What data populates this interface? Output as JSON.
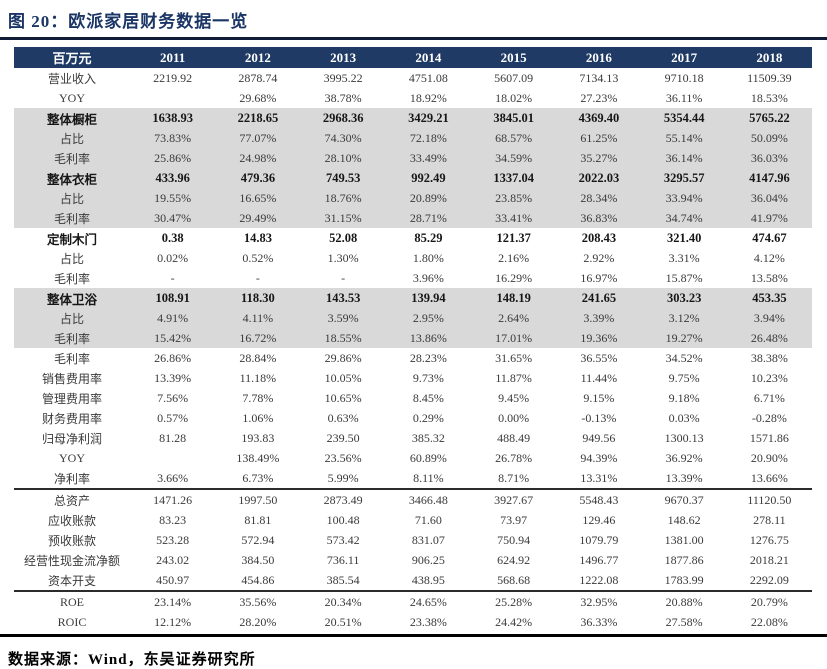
{
  "title": "图 20：欧派家居财务数据一览",
  "footer": "数据来源：Wind，东吴证券研究所",
  "colors": {
    "header_bg": "#1f3a64",
    "title_text": "#1a3566",
    "shaded_row_bg": "#d9d9d9",
    "rule": "#000000"
  },
  "table": {
    "unit_label": "百万元",
    "years": [
      "2011",
      "2012",
      "2013",
      "2014",
      "2015",
      "2016",
      "2017",
      "2018"
    ],
    "rows": [
      {
        "label": "营业收入",
        "bold": false,
        "shaded": false,
        "sep": false,
        "values": [
          "2219.92",
          "2878.74",
          "3995.22",
          "4751.08",
          "5607.09",
          "7134.13",
          "9710.18",
          "11509.39"
        ]
      },
      {
        "label": "YOY",
        "bold": false,
        "shaded": false,
        "sep": false,
        "values": [
          "",
          "29.68%",
          "38.78%",
          "18.92%",
          "18.02%",
          "27.23%",
          "36.11%",
          "18.53%"
        ]
      },
      {
        "label": "整体橱柜",
        "bold": true,
        "shaded": true,
        "sep": false,
        "values": [
          "1638.93",
          "2218.65",
          "2968.36",
          "3429.21",
          "3845.01",
          "4369.40",
          "5354.44",
          "5765.22"
        ]
      },
      {
        "label": "占比",
        "bold": false,
        "shaded": true,
        "sep": false,
        "values": [
          "73.83%",
          "77.07%",
          "74.30%",
          "72.18%",
          "68.57%",
          "61.25%",
          "55.14%",
          "50.09%"
        ]
      },
      {
        "label": "毛利率",
        "bold": false,
        "shaded": true,
        "sep": false,
        "values": [
          "25.86%",
          "24.98%",
          "28.10%",
          "33.49%",
          "34.59%",
          "35.27%",
          "36.14%",
          "36.03%"
        ]
      },
      {
        "label": "整体衣柜",
        "bold": true,
        "shaded": true,
        "sep": false,
        "values": [
          "433.96",
          "479.36",
          "749.53",
          "992.49",
          "1337.04",
          "2022.03",
          "3295.57",
          "4147.96"
        ]
      },
      {
        "label": "占比",
        "bold": false,
        "shaded": true,
        "sep": false,
        "values": [
          "19.55%",
          "16.65%",
          "18.76%",
          "20.89%",
          "23.85%",
          "28.34%",
          "33.94%",
          "36.04%"
        ]
      },
      {
        "label": "毛利率",
        "bold": false,
        "shaded": true,
        "sep": false,
        "values": [
          "30.47%",
          "29.49%",
          "31.15%",
          "28.71%",
          "33.41%",
          "36.83%",
          "34.74%",
          "41.97%"
        ]
      },
      {
        "label": "定制木门",
        "bold": true,
        "shaded": false,
        "sep": false,
        "values": [
          "0.38",
          "14.83",
          "52.08",
          "85.29",
          "121.37",
          "208.43",
          "321.40",
          "474.67"
        ]
      },
      {
        "label": "占比",
        "bold": false,
        "shaded": false,
        "sep": false,
        "values": [
          "0.02%",
          "0.52%",
          "1.30%",
          "1.80%",
          "2.16%",
          "2.92%",
          "3.31%",
          "4.12%"
        ]
      },
      {
        "label": "毛利率",
        "bold": false,
        "shaded": false,
        "sep": false,
        "values": [
          "-",
          "-",
          "-",
          "3.96%",
          "16.29%",
          "16.97%",
          "15.87%",
          "13.58%"
        ]
      },
      {
        "label": "整体卫浴",
        "bold": true,
        "shaded": true,
        "sep": false,
        "values": [
          "108.91",
          "118.30",
          "143.53",
          "139.94",
          "148.19",
          "241.65",
          "303.23",
          "453.35"
        ]
      },
      {
        "label": "占比",
        "bold": false,
        "shaded": true,
        "sep": false,
        "values": [
          "4.91%",
          "4.11%",
          "3.59%",
          "2.95%",
          "2.64%",
          "3.39%",
          "3.12%",
          "3.94%"
        ]
      },
      {
        "label": "毛利率",
        "bold": false,
        "shaded": true,
        "sep": false,
        "values": [
          "15.42%",
          "16.72%",
          "18.55%",
          "13.86%",
          "17.01%",
          "19.36%",
          "19.27%",
          "26.48%"
        ]
      },
      {
        "label": "毛利率",
        "bold": false,
        "shaded": false,
        "sep": false,
        "values": [
          "26.86%",
          "28.84%",
          "29.86%",
          "28.23%",
          "31.65%",
          "36.55%",
          "34.52%",
          "38.38%"
        ]
      },
      {
        "label": "销售费用率",
        "bold": false,
        "shaded": false,
        "sep": false,
        "values": [
          "13.39%",
          "11.18%",
          "10.05%",
          "9.73%",
          "11.87%",
          "11.44%",
          "9.75%",
          "10.23%"
        ]
      },
      {
        "label": "管理费用率",
        "bold": false,
        "shaded": false,
        "sep": false,
        "values": [
          "7.56%",
          "7.78%",
          "10.65%",
          "8.45%",
          "9.45%",
          "9.15%",
          "9.18%",
          "6.71%"
        ]
      },
      {
        "label": "财务费用率",
        "bold": false,
        "shaded": false,
        "sep": false,
        "values": [
          "0.57%",
          "1.06%",
          "0.63%",
          "0.29%",
          "0.00%",
          "-0.13%",
          "0.03%",
          "-0.28%"
        ]
      },
      {
        "label": "归母净利润",
        "bold": false,
        "shaded": false,
        "sep": false,
        "values": [
          "81.28",
          "193.83",
          "239.50",
          "385.32",
          "488.49",
          "949.56",
          "1300.13",
          "1571.86"
        ]
      },
      {
        "label": "YOY",
        "bold": false,
        "shaded": false,
        "sep": false,
        "values": [
          "",
          "138.49%",
          "23.56%",
          "60.89%",
          "26.78%",
          "94.39%",
          "36.92%",
          "20.90%"
        ]
      },
      {
        "label": "净利率",
        "bold": false,
        "shaded": false,
        "sep": false,
        "values": [
          "3.66%",
          "6.73%",
          "5.99%",
          "8.11%",
          "8.71%",
          "13.31%",
          "13.39%",
          "13.66%"
        ]
      },
      {
        "label": "总资产",
        "bold": false,
        "shaded": false,
        "sep": true,
        "values": [
          "1471.26",
          "1997.50",
          "2873.49",
          "3466.48",
          "3927.67",
          "5548.43",
          "9670.37",
          "11120.50"
        ]
      },
      {
        "label": "应收账款",
        "bold": false,
        "shaded": false,
        "sep": false,
        "values": [
          "83.23",
          "81.81",
          "100.48",
          "71.60",
          "73.97",
          "129.46",
          "148.62",
          "278.11"
        ]
      },
      {
        "label": "预收账款",
        "bold": false,
        "shaded": false,
        "sep": false,
        "values": [
          "523.28",
          "572.94",
          "573.42",
          "831.07",
          "750.94",
          "1079.79",
          "1381.00",
          "1276.75"
        ]
      },
      {
        "label": "经营性现金流净额",
        "bold": false,
        "shaded": false,
        "sep": false,
        "values": [
          "243.02",
          "384.50",
          "736.11",
          "906.25",
          "624.92",
          "1496.77",
          "1877.86",
          "2018.21"
        ]
      },
      {
        "label": "资本开支",
        "bold": false,
        "shaded": false,
        "sep": false,
        "values": [
          "450.97",
          "454.86",
          "385.54",
          "438.95",
          "568.68",
          "1222.08",
          "1783.99",
          "2292.09"
        ]
      },
      {
        "label": "ROE",
        "bold": false,
        "shaded": false,
        "sep": true,
        "values": [
          "23.14%",
          "35.56%",
          "20.34%",
          "24.65%",
          "25.28%",
          "32.95%",
          "20.88%",
          "20.79%"
        ]
      },
      {
        "label": "ROIC",
        "bold": false,
        "shaded": false,
        "sep": false,
        "values": [
          "12.12%",
          "28.20%",
          "20.51%",
          "23.38%",
          "24.42%",
          "36.33%",
          "27.58%",
          "22.08%"
        ]
      }
    ]
  }
}
